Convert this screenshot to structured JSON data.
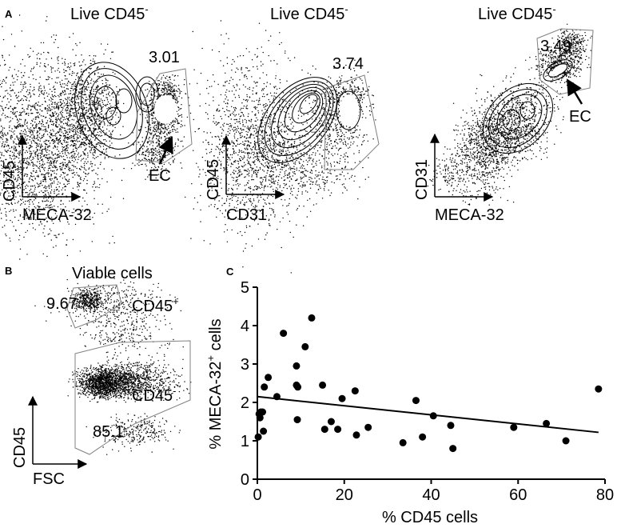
{
  "panels": {
    "a": {
      "letter": "A",
      "plots": [
        {
          "title": "Live CD45",
          "title_sup": "-",
          "x_label": "MECA-32",
          "y_label": "CD45",
          "gate_value": "3.01",
          "arrow_label": "EC"
        },
        {
          "title": "Live CD45",
          "title_sup": "-",
          "x_label": "CD31",
          "y_label": "CD45",
          "gate_value": "3.74"
        },
        {
          "title": "Live CD45",
          "title_sup": "-",
          "x_label": "MECA-32",
          "y_label": "CD31",
          "gate_value": "3.49",
          "arrow_label": "EC"
        }
      ]
    },
    "b": {
      "letter": "B",
      "title": "Viable cells",
      "x_label": "FSC",
      "y_label": "CD45",
      "gates": [
        {
          "value": "9.67",
          "label": "CD45",
          "label_sup": "+"
        },
        {
          "value": "85.1",
          "label": "CD45",
          "label_sup": "-"
        }
      ]
    },
    "c": {
      "letter": "C"
    }
  },
  "colors": {
    "ink": "#000000",
    "gate": "#808080",
    "background": "#ffffff"
  },
  "chart_data": {
    "type": "scatter",
    "title": "",
    "xlabel": "% CD45 cells",
    "ylabel": "% MECA-32",
    "ylabel_sup": "+",
    "ylabel_suffix": " cells",
    "xlim": [
      0,
      80
    ],
    "ylim": [
      0,
      5
    ],
    "xticks": [
      0,
      20,
      40,
      60,
      80
    ],
    "yticks": [
      0,
      1,
      2,
      3,
      4,
      5
    ],
    "grid": false,
    "points": [
      {
        "x": 0.2,
        "y": 1.1
      },
      {
        "x": 0.4,
        "y": 1.7
      },
      {
        "x": 0.6,
        "y": 1.6
      },
      {
        "x": 0.8,
        "y": 1.75
      },
      {
        "x": 1.2,
        "y": 1.75
      },
      {
        "x": 1.4,
        "y": 1.25
      },
      {
        "x": 1.6,
        "y": 2.4
      },
      {
        "x": 2.5,
        "y": 2.65
      },
      {
        "x": 4.5,
        "y": 2.15
      },
      {
        "x": 6.0,
        "y": 3.8
      },
      {
        "x": 9.0,
        "y": 2.95
      },
      {
        "x": 9.0,
        "y": 2.45
      },
      {
        "x": 9.2,
        "y": 1.55
      },
      {
        "x": 9.3,
        "y": 2.4
      },
      {
        "x": 11.0,
        "y": 3.45
      },
      {
        "x": 12.5,
        "y": 4.2
      },
      {
        "x": 15.0,
        "y": 2.45
      },
      {
        "x": 15.5,
        "y": 1.3
      },
      {
        "x": 17.0,
        "y": 1.5
      },
      {
        "x": 18.5,
        "y": 1.3
      },
      {
        "x": 19.5,
        "y": 2.1
      },
      {
        "x": 22.5,
        "y": 2.3
      },
      {
        "x": 22.8,
        "y": 1.15
      },
      {
        "x": 25.5,
        "y": 1.35
      },
      {
        "x": 33.5,
        "y": 0.95
      },
      {
        "x": 36.5,
        "y": 2.05
      },
      {
        "x": 38.0,
        "y": 1.1
      },
      {
        "x": 40.5,
        "y": 1.65
      },
      {
        "x": 44.5,
        "y": 1.4
      },
      {
        "x": 45.0,
        "y": 0.8
      },
      {
        "x": 59.0,
        "y": 1.35
      },
      {
        "x": 66.5,
        "y": 1.45
      },
      {
        "x": 71.0,
        "y": 1.0
      },
      {
        "x": 78.5,
        "y": 2.35
      }
    ],
    "fit_line": {
      "x": [
        0,
        78.5
      ],
      "y": [
        2.15,
        1.22
      ]
    }
  }
}
